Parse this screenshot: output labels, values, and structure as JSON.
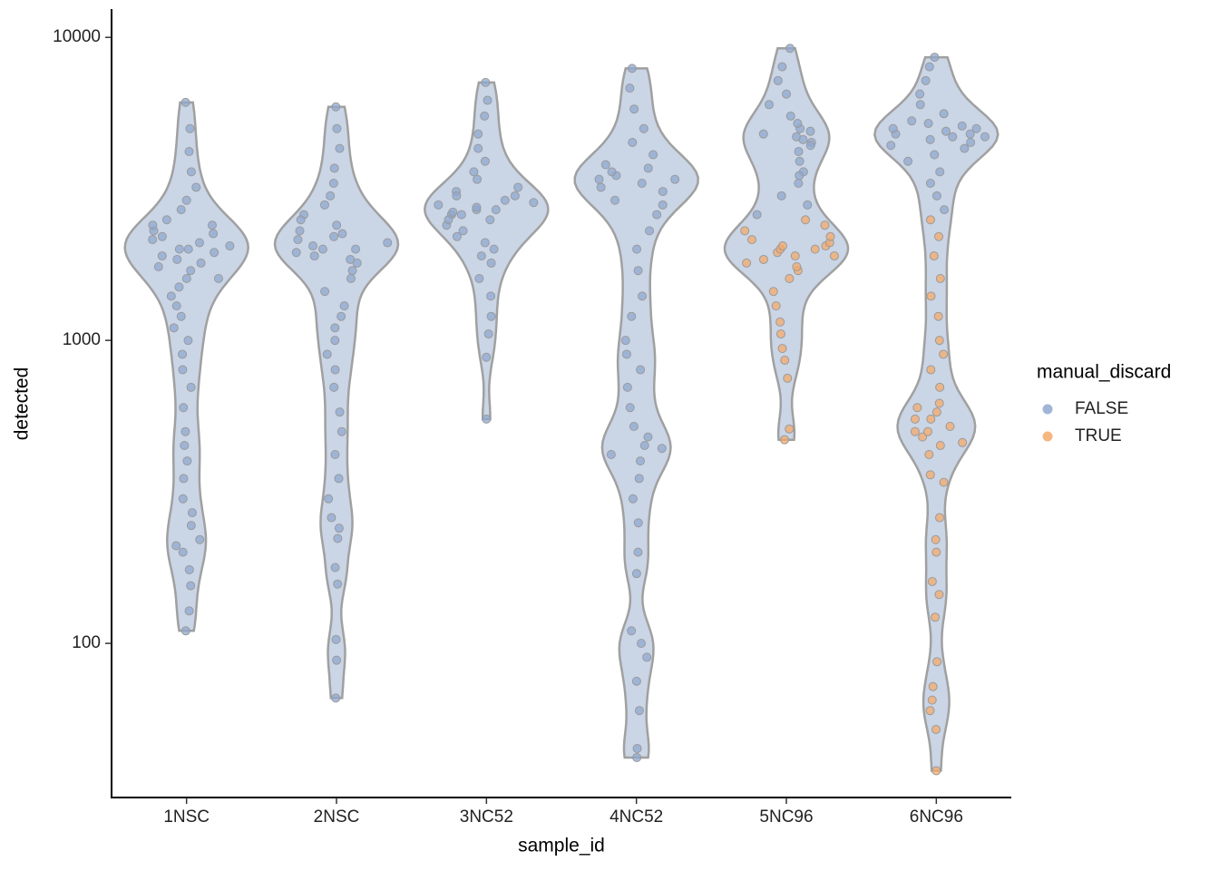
{
  "chart_data": {
    "type": "violin",
    "x_label": "sample_id",
    "y_label": "detected",
    "legend_title": "manual_discard",
    "categories": [
      "1NSC",
      "2NSC",
      "3NC52",
      "4NC52",
      "5NC96",
      "6NC96"
    ],
    "log_scale": true,
    "ylim": [
      31,
      12400
    ],
    "yticks": [
      100,
      1000,
      10000
    ],
    "series": [
      {
        "name": "FALSE",
        "color": "#8fa8d0",
        "values": [
          [
            110,
            128,
            155,
            175,
            200,
            210,
            220,
            245,
            270,
            300,
            350,
            400,
            450,
            500,
            600,
            700,
            800,
            900,
            1000,
            1100,
            1200,
            1300,
            1400,
            1500,
            1600,
            1700,
            1800,
            1900,
            2000,
            2000,
            2100,
            2200,
            2300,
            2400,
            2500,
            2700,
            2900,
            3200,
            3600,
            4200,
            5000,
            6100,
            1750,
            1850,
            1950,
            2050,
            2150,
            2250,
            1600,
            2400
          ],
          [
            66,
            88,
            103,
            157,
            178,
            222,
            240,
            260,
            300,
            350,
            420,
            500,
            580,
            700,
            800,
            900,
            1000,
            1100,
            1200,
            1300,
            1450,
            1600,
            1700,
            1800,
            1900,
            2000,
            2000,
            2100,
            2200,
            2300,
            2400,
            2600,
            2800,
            3000,
            3300,
            3700,
            4300,
            5000,
            5900,
            1850,
            1950,
            2050,
            2150,
            2250,
            2500
          ],
          [
            550,
            880,
            1050,
            1200,
            1400,
            1600,
            1800,
            1900,
            2000,
            2100,
            2200,
            2300,
            2400,
            2500,
            2600,
            2600,
            2700,
            2700,
            2800,
            2900,
            3000,
            3100,
            3200,
            3400,
            3600,
            3900,
            4300,
            4800,
            5500,
            6200,
            7100,
            2500,
            2650,
            2750,
            2850,
            3000
          ],
          [
            42,
            45,
            60,
            75,
            90,
            100,
            110,
            170,
            200,
            250,
            300,
            350,
            400,
            420,
            440,
            450,
            480,
            520,
            600,
            700,
            800,
            900,
            1000,
            1200,
            1400,
            1700,
            2000,
            2300,
            2600,
            2900,
            3100,
            3300,
            3400,
            3500,
            3600,
            3800,
            4100,
            4500,
            5000,
            5800,
            6800,
            7900,
            3200,
            3400,
            3700,
            2800
          ],
          [
            2600,
            2800,
            3000,
            3300,
            3600,
            3900,
            4200,
            4500,
            4700,
            4800,
            5000,
            5200,
            5500,
            6000,
            6500,
            7200,
            8000,
            9200,
            4400,
            4600,
            4900,
            3500
          ],
          [
            2700,
            3000,
            3300,
            3600,
            3900,
            4100,
            4300,
            4500,
            4600,
            4700,
            4800,
            4800,
            4900,
            5000,
            5100,
            5300,
            5600,
            6000,
            6500,
            7200,
            8000,
            8600,
            4400,
            4700,
            5000,
            5200
          ]
        ]
      },
      {
        "name": "TRUE",
        "color": "#f4a96a",
        "values": [
          [],
          [],
          [],
          [],
          [
            470,
            510,
            750,
            860,
            940,
            1050,
            1150,
            1300,
            1450,
            1600,
            1700,
            1800,
            1850,
            1900,
            1950,
            2000,
            2000,
            2050,
            2100,
            2150,
            2200,
            2300,
            2400,
            2500,
            1750,
            1900,
            2050
          ],
          [
            38,
            52,
            60,
            65,
            72,
            87,
            122,
            145,
            160,
            200,
            220,
            260,
            340,
            360,
            420,
            460,
            480,
            500,
            520,
            550,
            580,
            620,
            700,
            800,
            900,
            1000,
            1200,
            1400,
            1600,
            1900,
            2200,
            2500,
            500,
            550,
            450,
            600
          ]
        ]
      }
    ]
  }
}
